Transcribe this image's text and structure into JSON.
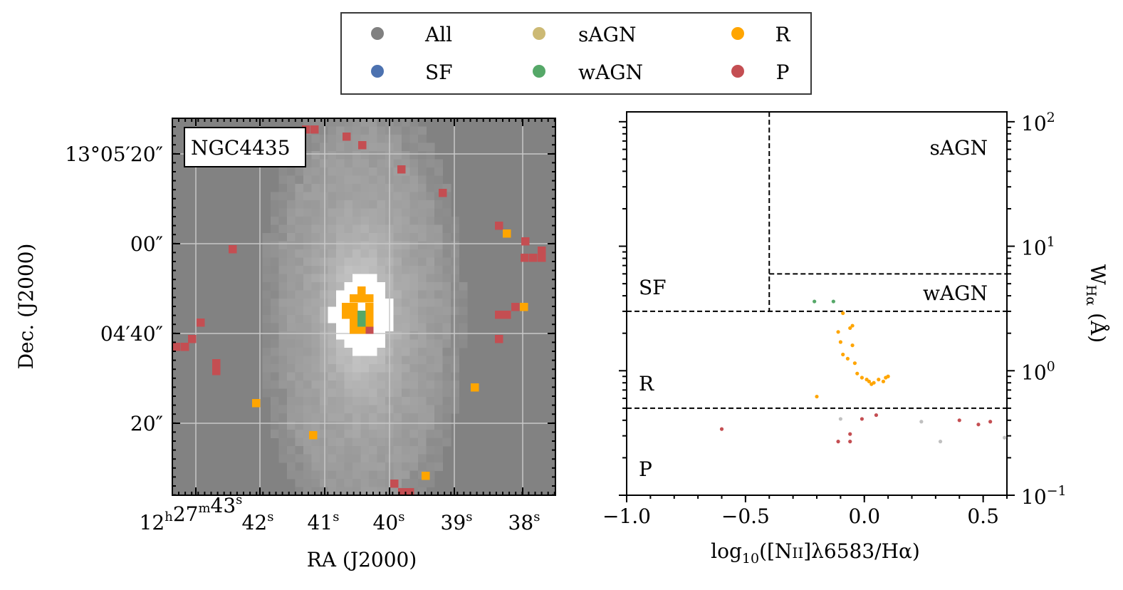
{
  "legend": [
    {
      "label": "All",
      "color": "#808080"
    },
    {
      "label": "SF",
      "color": "#4c72b0"
    },
    {
      "label": "sAGN",
      "color": "#ccb974"
    },
    {
      "label": "wAGN",
      "color": "#55a868"
    },
    {
      "label": "R",
      "color": "#ffa500"
    },
    {
      "label": "P",
      "color": "#c44e52"
    }
  ],
  "chart_data": [
    {
      "type": "heatmap",
      "title": "NGC4435",
      "xlabel": "RA (J2000)",
      "ylabel": "Dec. (J2000)",
      "ra_tick_labels": [
        "12h27m43s",
        "42s",
        "41s",
        "40s",
        "39s",
        "38s"
      ],
      "dec_tick_labels": [
        "13°05′20″",
        "00″",
        "04′40″",
        "20″"
      ],
      "grid": true,
      "background": "grayscale flux image",
      "colors": {
        "R": "#ffa500",
        "P": "#c44e52",
        "wAGN": "#55a868"
      }
    },
    {
      "type": "scatter",
      "xlabel": "log10([NII]λ6583/Hα)",
      "ylabel": "W_Hα (Å)",
      "xlim": [
        -1.0,
        0.6
      ],
      "ylim": [
        0.1,
        120
      ],
      "yscale": "log",
      "x_ticks": [
        -1.0,
        -0.5,
        0.0,
        0.5
      ],
      "x_tick_labels": [
        "−1.0",
        "−0.5",
        "0.0",
        "0.5"
      ],
      "y_ticks": [
        0.1,
        1,
        10,
        100
      ],
      "regions": [
        "sAGN",
        "wAGN",
        "SF",
        "R",
        "P"
      ],
      "boundaries": {
        "vertical_x": -0.4,
        "wagn_y": 6,
        "sf_y": 3,
        "retired_y": 0.5
      },
      "series": [
        {
          "name": "wAGN",
          "color": "#55a868",
          "x": [
            -0.21,
            -0.13
          ],
          "y": [
            3.6,
            3.6
          ]
        },
        {
          "name": "R",
          "color": "#ffa500",
          "x": [
            -0.09,
            -0.05,
            -0.06,
            -0.11,
            -0.1,
            -0.05,
            -0.09,
            -0.07,
            -0.04,
            -0.03,
            -0.01,
            0.01,
            0.02,
            0.03,
            0.04,
            0.06,
            0.08,
            0.09,
            0.1,
            -0.2
          ],
          "y": [
            2.9,
            2.3,
            2.2,
            2.05,
            1.7,
            1.6,
            1.35,
            1.25,
            1.15,
            0.95,
            0.88,
            0.85,
            0.82,
            0.78,
            0.8,
            0.85,
            0.82,
            0.88,
            0.9,
            0.62
          ]
        },
        {
          "name": "P",
          "color": "#c44e52",
          "x": [
            -0.6,
            -0.11,
            -0.06,
            -0.06,
            -0.01,
            0.05,
            0.4,
            0.48,
            0.53
          ],
          "y": [
            0.34,
            0.27,
            0.31,
            0.27,
            0.41,
            0.44,
            0.4,
            0.37,
            0.39
          ]
        },
        {
          "name": "All",
          "color": "#c0c0c0",
          "x": [
            -0.1,
            0.24,
            0.32,
            0.59
          ],
          "y": [
            0.41,
            0.39,
            0.27,
            0.29
          ]
        }
      ],
      "region_labels": [
        "sAGN",
        "wAGN",
        "SF",
        "R",
        "P"
      ]
    }
  ],
  "tick_glyphs": {
    "ra": [
      [
        "12",
        "h",
        "27",
        "m",
        "43",
        "s"
      ],
      [
        "42",
        "s"
      ],
      [
        "41",
        "s"
      ],
      [
        "40",
        "s"
      ],
      [
        "39",
        "s"
      ],
      [
        "38",
        "s"
      ]
    ],
    "dec": [
      "13°05′20″",
      "00″",
      "04′40″",
      "20″"
    ],
    "wy": [
      [
        "10",
        "2"
      ],
      [
        "10",
        "1"
      ],
      [
        "10",
        "0"
      ],
      [
        "10",
        "−1"
      ]
    ],
    "x_label_main": "log",
    "x_label_sub": "10",
    "x_label_rest": "([N",
    "x_label_ion": "II",
    "x_label_end": "]λ6583/Hα)",
    "w_label_main": "W",
    "w_label_sub": "Hα",
    "w_label_unit": "(Å)"
  }
}
